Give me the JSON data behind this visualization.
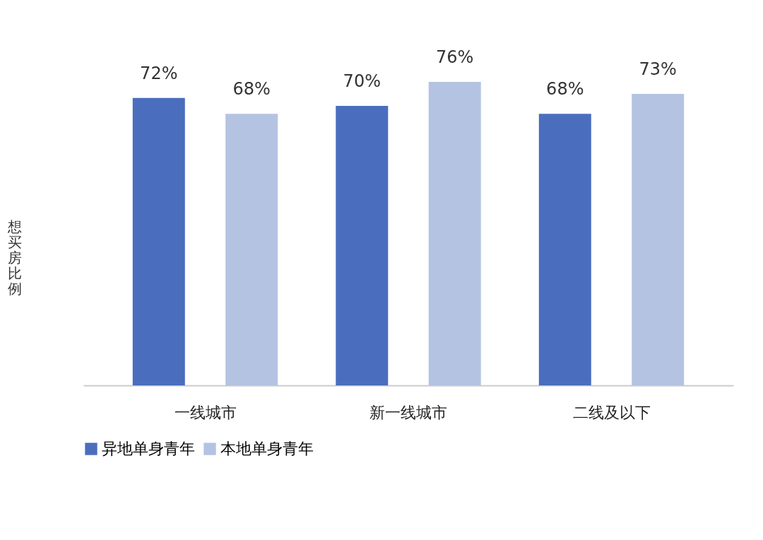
{
  "chart_data": {
    "type": "bar",
    "ylabel": "想买房比例",
    "categories": [
      "一线城市",
      "新一线城市",
      "二线及以下"
    ],
    "series": [
      {
        "name": "异地单身青年",
        "color": "#4a6ebd",
        "values": [
          72,
          70,
          68
        ],
        "value_labels": [
          "72%",
          "70%",
          "68%"
        ]
      },
      {
        "name": "本地单身青年",
        "color": "#b4c3e2",
        "values": [
          68,
          76,
          73
        ],
        "value_labels": [
          "68%",
          "76%",
          "73%"
        ]
      }
    ],
    "legend": "bottom",
    "tick_labels": "x"
  }
}
